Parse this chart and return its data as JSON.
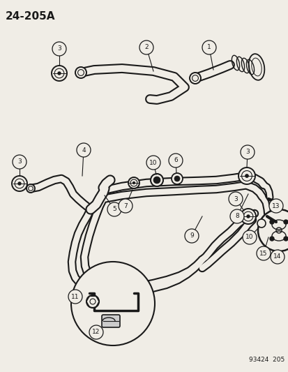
{
  "title": "24-205A",
  "footer": "93424  205",
  "bg_color": "#f0ede6",
  "line_color": "#1a1a1a",
  "fig_width": 4.14,
  "fig_height": 5.33,
  "dpi": 100
}
